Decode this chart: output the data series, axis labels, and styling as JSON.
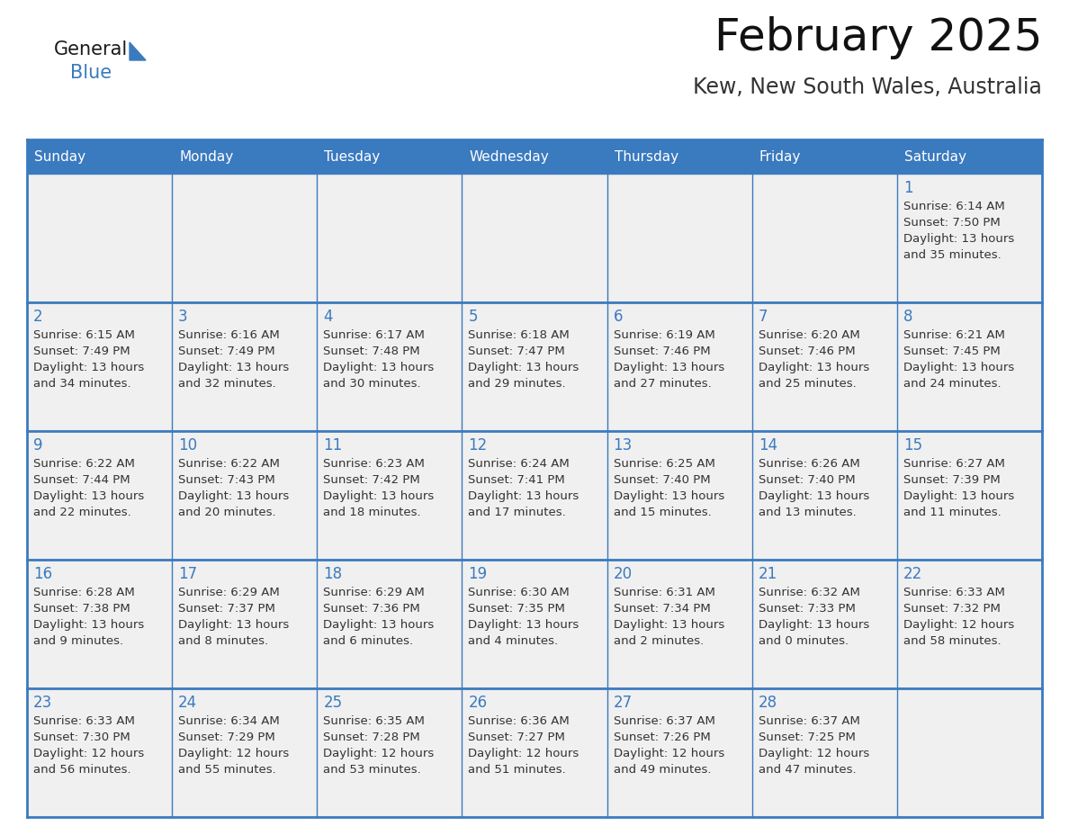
{
  "title": "February 2025",
  "subtitle": "Kew, New South Wales, Australia",
  "header_bg_color": "#3a7abf",
  "header_text_color": "#ffffff",
  "cell_bg_color": "#f0f0f0",
  "cell_text_color": "#333333",
  "grid_line_color": "#3a7abf",
  "day_number_color": "#3a7abf",
  "title_color": "#111111",
  "subtitle_color": "#333333",
  "logo_text1": "General",
  "logo_text2": "Blue",
  "logo_triangle_color": "#3a7abf",
  "logo_text1_color": "#1a1a1a",
  "logo_text2_color": "#3a7abf",
  "days_of_week": [
    "Sunday",
    "Monday",
    "Tuesday",
    "Wednesday",
    "Thursday",
    "Friday",
    "Saturday"
  ],
  "weeks": [
    [
      {
        "day": null,
        "info": ""
      },
      {
        "day": null,
        "info": ""
      },
      {
        "day": null,
        "info": ""
      },
      {
        "day": null,
        "info": ""
      },
      {
        "day": null,
        "info": ""
      },
      {
        "day": null,
        "info": ""
      },
      {
        "day": 1,
        "info": "Sunrise: 6:14 AM\nSunset: 7:50 PM\nDaylight: 13 hours\nand 35 minutes."
      }
    ],
    [
      {
        "day": 2,
        "info": "Sunrise: 6:15 AM\nSunset: 7:49 PM\nDaylight: 13 hours\nand 34 minutes."
      },
      {
        "day": 3,
        "info": "Sunrise: 6:16 AM\nSunset: 7:49 PM\nDaylight: 13 hours\nand 32 minutes."
      },
      {
        "day": 4,
        "info": "Sunrise: 6:17 AM\nSunset: 7:48 PM\nDaylight: 13 hours\nand 30 minutes."
      },
      {
        "day": 5,
        "info": "Sunrise: 6:18 AM\nSunset: 7:47 PM\nDaylight: 13 hours\nand 29 minutes."
      },
      {
        "day": 6,
        "info": "Sunrise: 6:19 AM\nSunset: 7:46 PM\nDaylight: 13 hours\nand 27 minutes."
      },
      {
        "day": 7,
        "info": "Sunrise: 6:20 AM\nSunset: 7:46 PM\nDaylight: 13 hours\nand 25 minutes."
      },
      {
        "day": 8,
        "info": "Sunrise: 6:21 AM\nSunset: 7:45 PM\nDaylight: 13 hours\nand 24 minutes."
      }
    ],
    [
      {
        "day": 9,
        "info": "Sunrise: 6:22 AM\nSunset: 7:44 PM\nDaylight: 13 hours\nand 22 minutes."
      },
      {
        "day": 10,
        "info": "Sunrise: 6:22 AM\nSunset: 7:43 PM\nDaylight: 13 hours\nand 20 minutes."
      },
      {
        "day": 11,
        "info": "Sunrise: 6:23 AM\nSunset: 7:42 PM\nDaylight: 13 hours\nand 18 minutes."
      },
      {
        "day": 12,
        "info": "Sunrise: 6:24 AM\nSunset: 7:41 PM\nDaylight: 13 hours\nand 17 minutes."
      },
      {
        "day": 13,
        "info": "Sunrise: 6:25 AM\nSunset: 7:40 PM\nDaylight: 13 hours\nand 15 minutes."
      },
      {
        "day": 14,
        "info": "Sunrise: 6:26 AM\nSunset: 7:40 PM\nDaylight: 13 hours\nand 13 minutes."
      },
      {
        "day": 15,
        "info": "Sunrise: 6:27 AM\nSunset: 7:39 PM\nDaylight: 13 hours\nand 11 minutes."
      }
    ],
    [
      {
        "day": 16,
        "info": "Sunrise: 6:28 AM\nSunset: 7:38 PM\nDaylight: 13 hours\nand 9 minutes."
      },
      {
        "day": 17,
        "info": "Sunrise: 6:29 AM\nSunset: 7:37 PM\nDaylight: 13 hours\nand 8 minutes."
      },
      {
        "day": 18,
        "info": "Sunrise: 6:29 AM\nSunset: 7:36 PM\nDaylight: 13 hours\nand 6 minutes."
      },
      {
        "day": 19,
        "info": "Sunrise: 6:30 AM\nSunset: 7:35 PM\nDaylight: 13 hours\nand 4 minutes."
      },
      {
        "day": 20,
        "info": "Sunrise: 6:31 AM\nSunset: 7:34 PM\nDaylight: 13 hours\nand 2 minutes."
      },
      {
        "day": 21,
        "info": "Sunrise: 6:32 AM\nSunset: 7:33 PM\nDaylight: 13 hours\nand 0 minutes."
      },
      {
        "day": 22,
        "info": "Sunrise: 6:33 AM\nSunset: 7:32 PM\nDaylight: 12 hours\nand 58 minutes."
      }
    ],
    [
      {
        "day": 23,
        "info": "Sunrise: 6:33 AM\nSunset: 7:30 PM\nDaylight: 12 hours\nand 56 minutes."
      },
      {
        "day": 24,
        "info": "Sunrise: 6:34 AM\nSunset: 7:29 PM\nDaylight: 12 hours\nand 55 minutes."
      },
      {
        "day": 25,
        "info": "Sunrise: 6:35 AM\nSunset: 7:28 PM\nDaylight: 12 hours\nand 53 minutes."
      },
      {
        "day": 26,
        "info": "Sunrise: 6:36 AM\nSunset: 7:27 PM\nDaylight: 12 hours\nand 51 minutes."
      },
      {
        "day": 27,
        "info": "Sunrise: 6:37 AM\nSunset: 7:26 PM\nDaylight: 12 hours\nand 49 minutes."
      },
      {
        "day": 28,
        "info": "Sunrise: 6:37 AM\nSunset: 7:25 PM\nDaylight: 12 hours\nand 47 minutes."
      },
      {
        "day": null,
        "info": ""
      }
    ]
  ],
  "figsize": [
    11.88,
    9.18
  ],
  "dpi": 100
}
